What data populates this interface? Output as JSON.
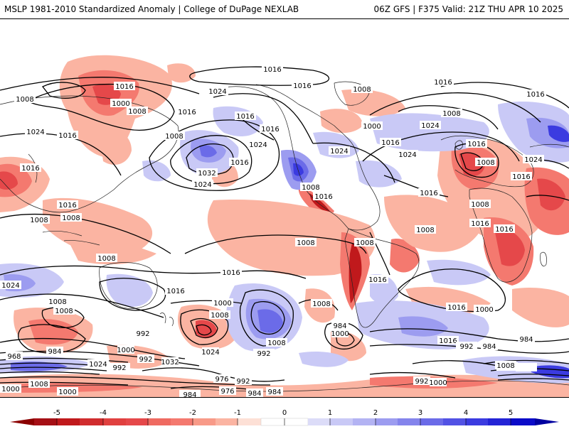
{
  "header": {
    "left": "MSLP 1981-2010 Standardized Anomaly | College of DuPage NEXLAB",
    "right": "06Z GFS | F375 Valid: 21Z THU APR 10 2025"
  },
  "colors": {
    "neg5": "#8b0000",
    "neg4": "#c0191c",
    "neg3": "#e5484a",
    "neg2": "#f4796f",
    "neg1": "#fbb4a2",
    "zero": "#ffffff",
    "pos1": "#c9c9f6",
    "pos2": "#9c9cf0",
    "pos3": "#6b6be8",
    "pos4": "#3b3be0",
    "pos5": "#0b0bc8",
    "contour": "#000000"
  },
  "colorbar": {
    "ticks": [
      "-5",
      "-4",
      "-3",
      "-2",
      "-1",
      "0",
      "1",
      "2",
      "3",
      "4",
      "5"
    ]
  },
  "isobar_labels": [
    {
      "id": "i1",
      "text": "1016"
    },
    {
      "id": "i2",
      "text": "1024"
    },
    {
      "id": "i3",
      "text": "1016"
    },
    {
      "id": "i4",
      "text": "1008"
    },
    {
      "id": "i5",
      "text": "1016"
    },
    {
      "id": "i6",
      "text": "1000"
    },
    {
      "id": "i7",
      "text": "1008"
    },
    {
      "id": "i8",
      "text": "1008"
    },
    {
      "id": "i9",
      "text": "1024"
    },
    {
      "id": "i10",
      "text": "1016"
    },
    {
      "id": "i11",
      "text": "1008"
    },
    {
      "id": "i12",
      "text": "1016"
    },
    {
      "id": "i13",
      "text": "1032"
    },
    {
      "id": "i14",
      "text": "1024"
    },
    {
      "id": "i15",
      "text": "1024"
    },
    {
      "id": "i16",
      "text": "1016"
    },
    {
      "id": "i17",
      "text": "1016"
    },
    {
      "id": "i18",
      "text": "1016"
    },
    {
      "id": "i19",
      "text": "1024"
    },
    {
      "id": "i20",
      "text": "1008"
    },
    {
      "id": "i21",
      "text": "1016"
    },
    {
      "id": "i22",
      "text": "1016"
    },
    {
      "id": "i23",
      "text": "1000"
    },
    {
      "id": "i24",
      "text": "1008"
    },
    {
      "id": "i25",
      "text": "1016"
    },
    {
      "id": "i26",
      "text": "1024"
    },
    {
      "id": "i27",
      "text": "1024"
    },
    {
      "id": "i28",
      "text": "1016"
    },
    {
      "id": "i29",
      "text": "1016"
    },
    {
      "id": "i30",
      "text": "1016"
    },
    {
      "id": "i31",
      "text": "1008"
    },
    {
      "id": "i32",
      "text": "1016"
    },
    {
      "id": "i33",
      "text": "1024"
    },
    {
      "id": "i34",
      "text": "1016"
    },
    {
      "id": "i35",
      "text": "1008"
    },
    {
      "id": "i36",
      "text": "1016"
    },
    {
      "id": "i37",
      "text": "1008"
    },
    {
      "id": "i38",
      "text": "1008"
    },
    {
      "id": "i39",
      "text": "1016"
    },
    {
      "id": "i40",
      "text": "1008"
    },
    {
      "id": "i41",
      "text": "1008"
    },
    {
      "id": "i42",
      "text": "1008"
    },
    {
      "id": "i43",
      "text": "1016"
    },
    {
      "id": "i44",
      "text": "1008"
    },
    {
      "id": "i45",
      "text": "1016"
    },
    {
      "id": "i46",
      "text": "1016"
    },
    {
      "id": "i47",
      "text": "1024"
    },
    {
      "id": "i48",
      "text": "1016"
    },
    {
      "id": "i49",
      "text": "1000"
    },
    {
      "id": "i50",
      "text": "1008"
    },
    {
      "id": "i51",
      "text": "1016"
    },
    {
      "id": "i52",
      "text": "1000"
    },
    {
      "id": "i53",
      "text": "1008"
    },
    {
      "id": "i54",
      "text": "992"
    },
    {
      "id": "i55",
      "text": "1024"
    },
    {
      "id": "i56",
      "text": "1008"
    },
    {
      "id": "i57",
      "text": "992"
    },
    {
      "id": "i58",
      "text": "984"
    },
    {
      "id": "i59",
      "text": "1000"
    },
    {
      "id": "i60",
      "text": "1008"
    },
    {
      "id": "i61",
      "text": "1016"
    },
    {
      "id": "i62",
      "text": "1008"
    },
    {
      "id": "i63",
      "text": "1000"
    },
    {
      "id": "i64",
      "text": "992"
    },
    {
      "id": "i65",
      "text": "984"
    },
    {
      "id": "i66",
      "text": "984"
    },
    {
      "id": "i67",
      "text": "968"
    },
    {
      "id": "i68",
      "text": "984"
    },
    {
      "id": "i69",
      "text": "1000"
    },
    {
      "id": "i70",
      "text": "1024"
    },
    {
      "id": "i71",
      "text": "992"
    },
    {
      "id": "i72",
      "text": "992"
    },
    {
      "id": "i73",
      "text": "1032"
    },
    {
      "id": "i74",
      "text": "1008"
    },
    {
      "id": "i75",
      "text": "1000"
    },
    {
      "id": "i76",
      "text": "1000"
    },
    {
      "id": "i77",
      "text": "984"
    },
    {
      "id": "i78",
      "text": "976"
    },
    {
      "id": "i79",
      "text": "976"
    },
    {
      "id": "i80",
      "text": "992"
    },
    {
      "id": "i81",
      "text": "984"
    },
    {
      "id": "i82",
      "text": "984"
    },
    {
      "id": "i83",
      "text": "992"
    },
    {
      "id": "i84",
      "text": "1000"
    },
    {
      "id": "i85",
      "text": "1008"
    }
  ]
}
